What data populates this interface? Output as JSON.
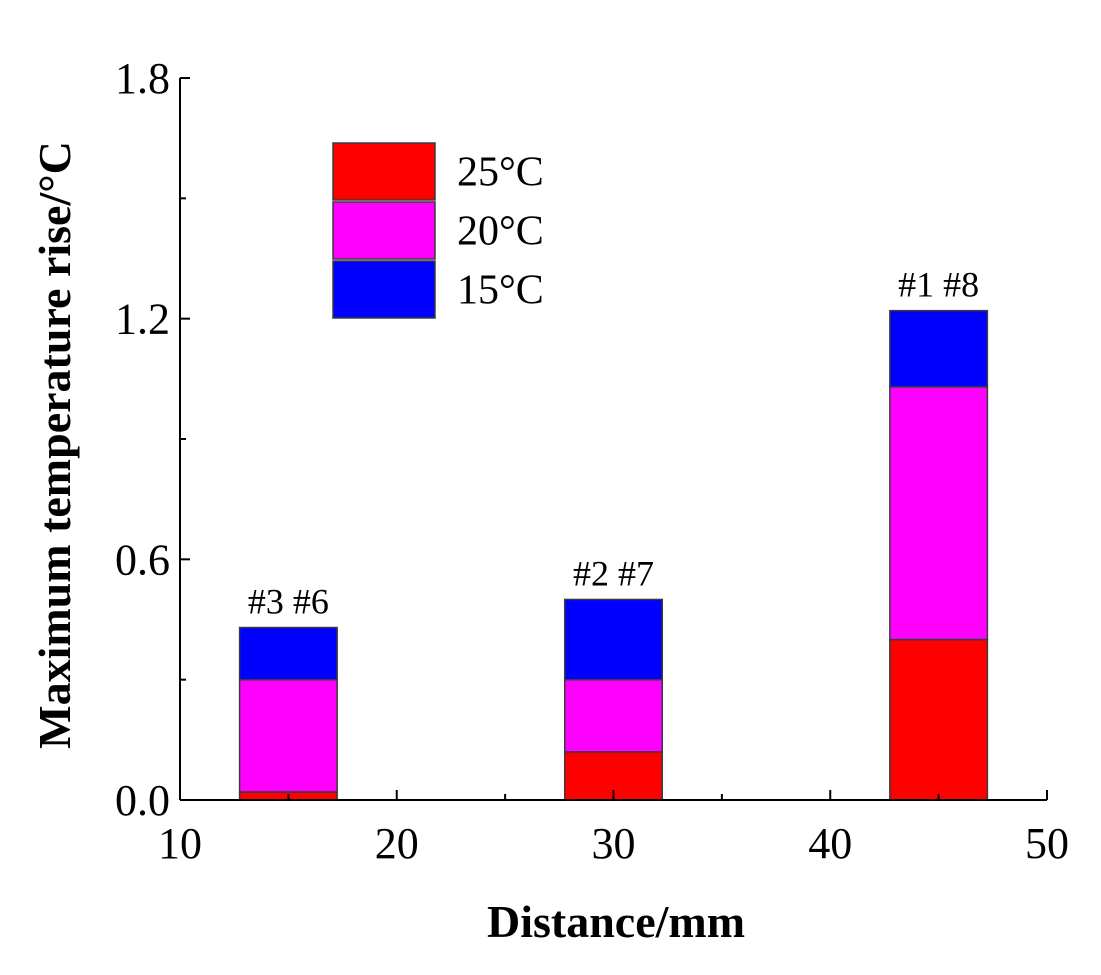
{
  "chart_data": {
    "type": "bar",
    "stacked": true,
    "title": "",
    "xlabel": "Distance/mm",
    "ylabel": "Maximum temperature rise/°C",
    "xlim": [
      10,
      50
    ],
    "ylim": [
      0,
      1.8
    ],
    "x_ticks": [
      "10",
      "20",
      "30",
      "40",
      "50"
    ],
    "y_ticks": [
      "0.0",
      "0.6",
      "1.2",
      "1.8"
    ],
    "bar_width": 4.5,
    "categories": [
      "#3 #6",
      "#2 #7",
      "#1 #8"
    ],
    "x": [
      15,
      30,
      45
    ],
    "series": [
      {
        "name": "25°C",
        "color": "#ff0000",
        "values": [
          0.02,
          0.12,
          0.4
        ]
      },
      {
        "name": "20°C",
        "color": "#ff00ff",
        "values": [
          0.28,
          0.18,
          0.63
        ]
      },
      {
        "name": "15°C",
        "color": "#0000ff",
        "values": [
          0.13,
          0.2,
          0.19
        ]
      }
    ],
    "legend_position": "top-left",
    "grid": false
  }
}
